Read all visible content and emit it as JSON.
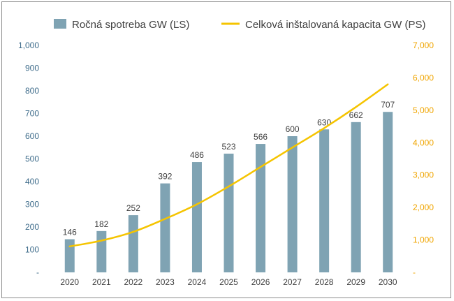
{
  "chart_data": {
    "type": "bar",
    "categories": [
      "2020",
      "2021",
      "2022",
      "2023",
      "2024",
      "2025",
      "2026",
      "2027",
      "2028",
      "2029",
      "2030"
    ],
    "series": [
      {
        "name": "Ročná spotreba GW (ĽS)",
        "type": "bar",
        "axis": "left",
        "color": "#7fa3b3",
        "values": [
          146,
          182,
          252,
          392,
          486,
          523,
          566,
          600,
          630,
          662,
          707
        ]
      },
      {
        "name": "Celková inštalovaná kapacita GW (PS)",
        "type": "line",
        "axis": "right",
        "color": "#f5c400",
        "values": [
          800,
          980,
          1250,
          1650,
          2100,
          2650,
          3250,
          3850,
          4450,
          5100,
          5800
        ]
      }
    ],
    "y_left": {
      "lim": [
        0,
        1000
      ],
      "ticks": [
        0,
        100,
        200,
        300,
        400,
        500,
        600,
        700,
        800,
        900,
        1000
      ],
      "tick_labels": [
        "-",
        "100",
        "200",
        "300",
        "400",
        "500",
        "600",
        "700",
        "800",
        "900",
        "1,000"
      ],
      "color": "#3d6b8a"
    },
    "y_right": {
      "lim": [
        0,
        7000
      ],
      "ticks": [
        0,
        1000,
        2000,
        3000,
        4000,
        5000,
        6000,
        7000
      ],
      "tick_labels": [
        "-",
        "1,000",
        "2,000",
        "3,000",
        "4,000",
        "5,000",
        "6,000",
        "7,000"
      ],
      "color": "#f0a500"
    },
    "data_labels": [
      "146",
      "182",
      "252",
      "392",
      "486",
      "523",
      "566",
      "600",
      "630",
      "662",
      "707"
    ],
    "legend_position": "top",
    "grid": false,
    "title": "",
    "xlabel": "",
    "ylabel": ""
  }
}
